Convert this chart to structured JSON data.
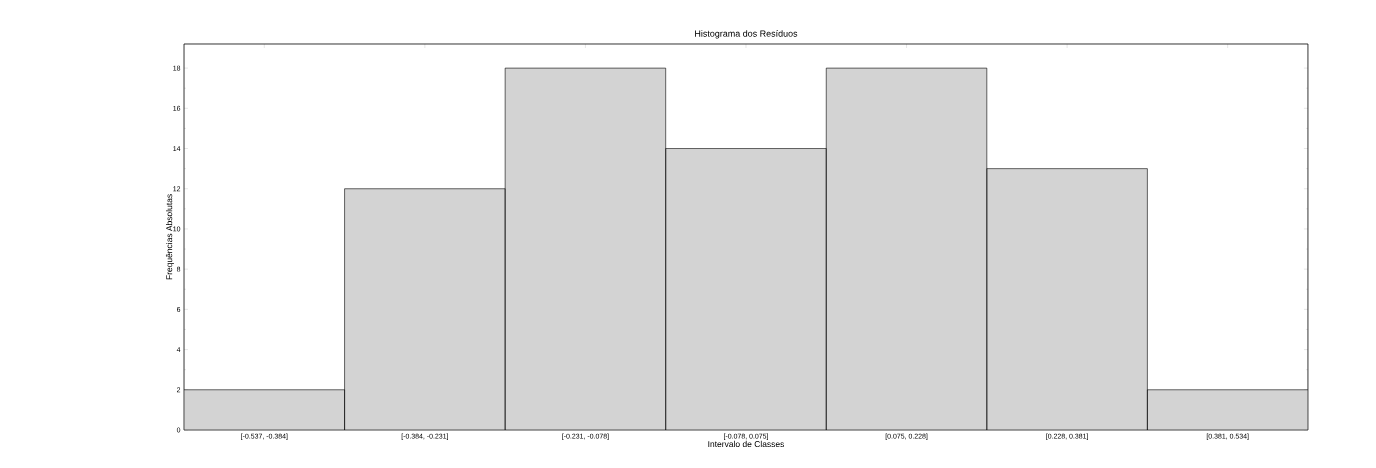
{
  "chart_data": {
    "type": "bar",
    "title": "Histograma dos Resíduos",
    "xlabel": "Intervalo de Classes",
    "ylabel": "Frequências Absolutas",
    "categories": [
      "[-0.537, -0.384]",
      "[-0.384, -0.231]",
      "[-0.231, -0.078]",
      "[-0.078, 0.075]",
      "[0.075, 0.228]",
      "[0.228, 0.381]",
      "[0.381, 0.534]"
    ],
    "values": [
      2,
      12,
      18,
      14,
      18,
      13,
      2
    ],
    "color": "#d3d3d3",
    "ylim": [
      0,
      19.2
    ],
    "yticks": [
      0,
      2,
      4,
      6,
      8,
      10,
      12,
      14,
      16,
      18
    ],
    "grid": false
  }
}
